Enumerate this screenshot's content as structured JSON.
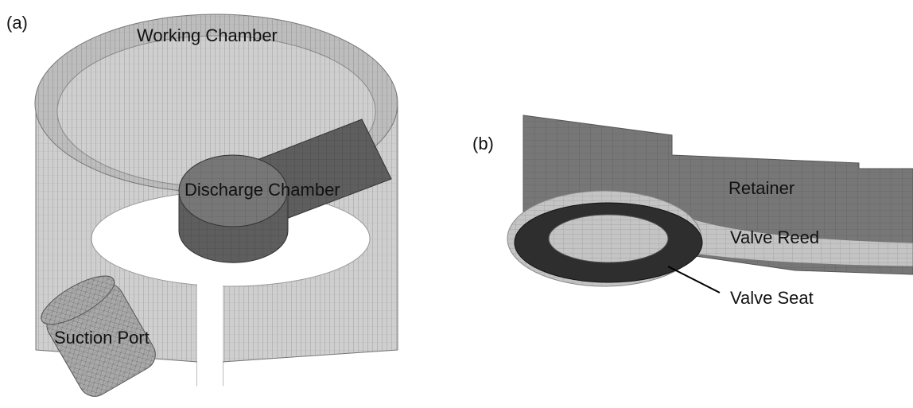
{
  "panels": [
    {
      "label": "(a)",
      "annotations": [
        "Working Chamber",
        "Discharge Chamber",
        "Suction Port"
      ]
    },
    {
      "label": "(b)",
      "annotations": [
        "Retainer",
        "Valve Reed",
        "Valve Seat"
      ]
    }
  ]
}
